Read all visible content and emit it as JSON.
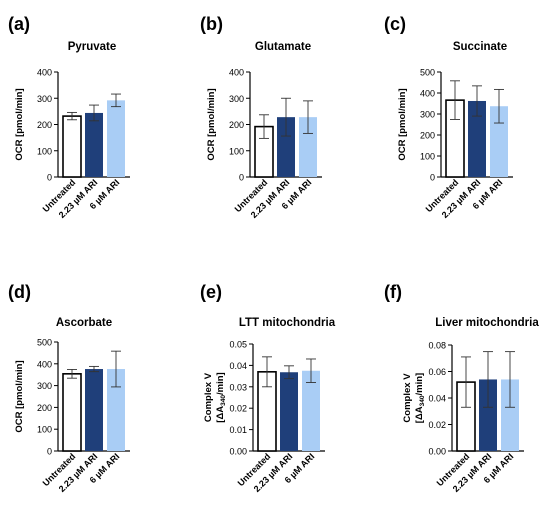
{
  "figure": {
    "colors": {
      "untreated": "#ffffff",
      "ari_223": "#1f3f7a",
      "ari_6": "#a9cdf5",
      "axis": "#000000",
      "error_bar": "#333333"
    }
  },
  "chart_data": [
    {
      "panel_label": "(a)",
      "type": "bar",
      "title": "Pyruvate",
      "ylabel": "OCR [pmol/min]",
      "ylim": [
        0,
        400
      ],
      "yticks": [
        "0",
        "100",
        "200",
        "300",
        "400"
      ],
      "categories": [
        "Untreated",
        "2.23 µM ARI",
        "6 µM ARI"
      ],
      "values": [
        232,
        244,
        292
      ],
      "errors": [
        14,
        30,
        24
      ],
      "grid": false,
      "legend": "none"
    },
    {
      "panel_label": "(b)",
      "type": "bar",
      "title": "Glutamate",
      "ylabel": "OCR [pmol/min]",
      "ylim": [
        0,
        400
      ],
      "yticks": [
        "0",
        "100",
        "200",
        "300",
        "400"
      ],
      "categories": [
        "Untreated",
        "2.23 µM ARI",
        "6 µM ARI"
      ],
      "values": [
        192,
        228,
        228
      ],
      "errors": [
        45,
        72,
        62
      ],
      "grid": false,
      "legend": "none"
    },
    {
      "panel_label": "(c)",
      "type": "bar",
      "title": "Succinate",
      "ylabel": "OCR [pmol/min]",
      "ylim": [
        0,
        500
      ],
      "yticks": [
        "0",
        "100",
        "200",
        "300",
        "400",
        "500"
      ],
      "categories": [
        "Untreated",
        "2.23 µM ARI",
        "6 µM ARI"
      ],
      "values": [
        366,
        362,
        337
      ],
      "errors": [
        92,
        72,
        80
      ],
      "grid": false,
      "legend": "none"
    },
    {
      "panel_label": "(d)",
      "type": "bar",
      "title": "Ascorbate",
      "ylabel": "OCR [pmol/min]",
      "ylim": [
        0,
        500
      ],
      "yticks": [
        "0",
        "100",
        "200",
        "300",
        "400",
        "500"
      ],
      "categories": [
        "Untreated",
        "2.23 µM ARI",
        "6 µM ARI"
      ],
      "values": [
        354,
        376,
        376
      ],
      "errors": [
        20,
        12,
        82
      ],
      "grid": false,
      "legend": "none"
    },
    {
      "panel_label": "(e)",
      "type": "bar",
      "title": "LTT mitochondria",
      "ylabel_lines": [
        "Complex V",
        "[ΔA",
        "340",
        "/min]"
      ],
      "ylim": [
        0,
        0.05
      ],
      "yticks": [
        "0.00",
        "0.01",
        "0.02",
        "0.03",
        "0.04",
        "0.05"
      ],
      "categories": [
        "Untreated",
        "2.23 µM ARI",
        "6 µM ARI"
      ],
      "values": [
        0.037,
        0.0368,
        0.0375
      ],
      "errors": [
        0.007,
        0.003,
        0.0055
      ],
      "grid": false,
      "legend": "none"
    },
    {
      "panel_label": "(f)",
      "type": "bar",
      "title": "Liver mitochondria",
      "ylabel_lines": [
        "Complex V",
        "[ΔA",
        "340",
        "/min]"
      ],
      "ylim": [
        0,
        0.08
      ],
      "yticks": [
        "0.00",
        "0.02",
        "0.04",
        "0.06",
        "0.08"
      ],
      "categories": [
        "Untreated",
        "2.23 µM ARI",
        "6 µM ARI"
      ],
      "values": [
        0.052,
        0.054,
        0.054
      ],
      "errors": [
        0.019,
        0.021,
        0.021
      ],
      "grid": false,
      "legend": "none"
    }
  ]
}
